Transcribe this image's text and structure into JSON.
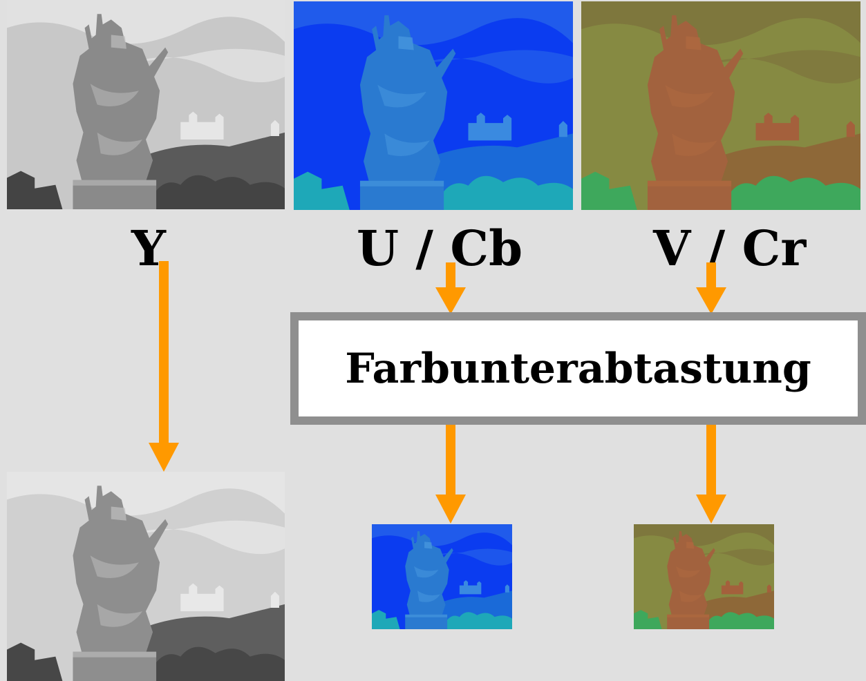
{
  "labels": {
    "y": "Y",
    "u": "U / Cb",
    "v": "V / Cr"
  },
  "process_box": {
    "text": "Farbunterabtastung"
  },
  "colors": {
    "background": "#e0e0e0",
    "arrow": "#ff9900",
    "box_border": "#8f8f8f",
    "box_fill": "#ffffff",
    "cb_tint": "#1040e0",
    "cr_tint": "#8a7a3a"
  }
}
